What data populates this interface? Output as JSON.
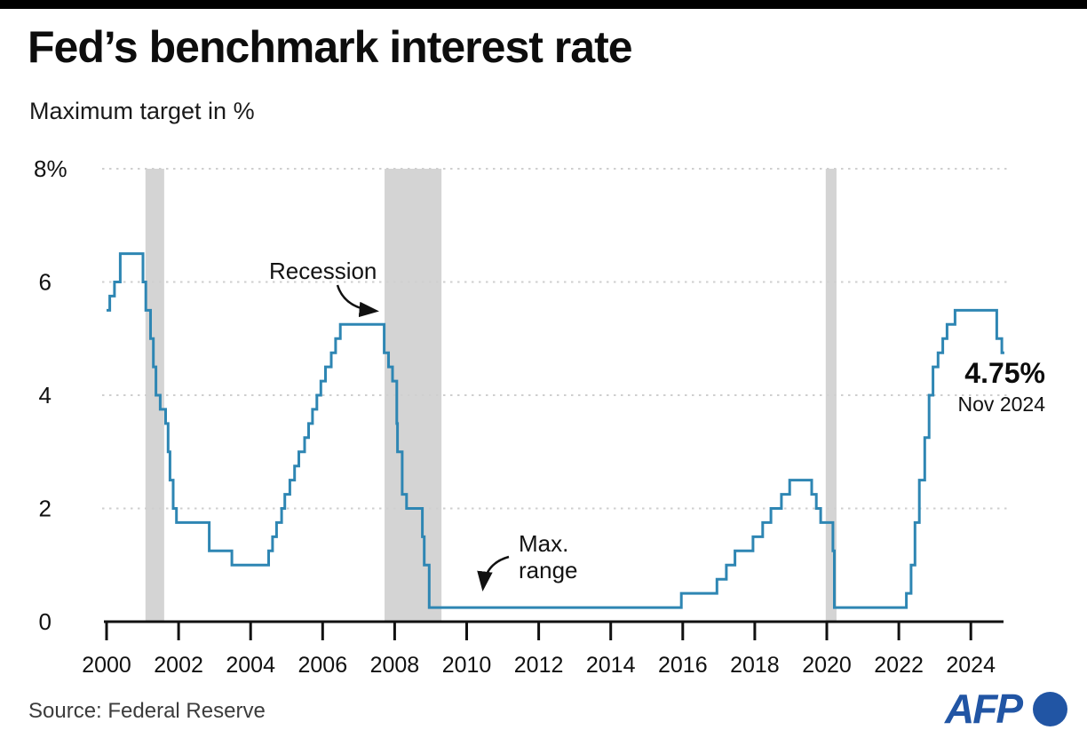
{
  "header": {
    "title": "Fed’s benchmark interest rate",
    "subtitle": "Maximum target in %"
  },
  "footer": {
    "source": "Source: Federal Reserve",
    "logo_text": "AFP"
  },
  "colors": {
    "line": "#2e86b3",
    "recession_band": "#d4d4d4",
    "gridline": "#cfcfcf",
    "axis": "#111111",
    "afp_blue": "#2155a4"
  },
  "chart_data": {
    "type": "line",
    "title": "Fed’s benchmark interest rate",
    "subtitle": "Maximum target in %",
    "ylabel": "Maximum target in %",
    "xlabel": "",
    "xlim": [
      1999.95,
      2024.95
    ],
    "ylim": [
      0,
      8
    ],
    "grid": "dotted horizontal",
    "legend": "none",
    "x_ticks": [
      2000,
      2002,
      2004,
      2006,
      2008,
      2010,
      2012,
      2014,
      2016,
      2018,
      2020,
      2022,
      2024
    ],
    "y_ticks": [
      {
        "label": "8%",
        "value": 8
      },
      {
        "label": "6",
        "value": 6
      },
      {
        "label": "4",
        "value": 4
      },
      {
        "label": "2",
        "value": 2
      },
      {
        "label": "0",
        "value": 0
      }
    ],
    "recessions": [
      [
        2001.08,
        2001.6
      ],
      [
        2007.72,
        2009.3
      ],
      [
        2019.97,
        2020.27
      ]
    ],
    "x_end": 2024.93,
    "step_points": [
      [
        2000.0,
        5.5
      ],
      [
        2000.09,
        5.75
      ],
      [
        2000.22,
        6.0
      ],
      [
        2000.38,
        6.5
      ],
      [
        2001.01,
        6.0
      ],
      [
        2001.09,
        5.5
      ],
      [
        2001.22,
        5.0
      ],
      [
        2001.3,
        4.5
      ],
      [
        2001.37,
        4.0
      ],
      [
        2001.49,
        3.75
      ],
      [
        2001.64,
        3.5
      ],
      [
        2001.71,
        3.0
      ],
      [
        2001.76,
        2.5
      ],
      [
        2001.85,
        2.0
      ],
      [
        2001.94,
        1.75
      ],
      [
        2002.85,
        1.25
      ],
      [
        2003.48,
        1.0
      ],
      [
        2004.5,
        1.25
      ],
      [
        2004.61,
        1.5
      ],
      [
        2004.72,
        1.75
      ],
      [
        2004.86,
        2.0
      ],
      [
        2004.95,
        2.25
      ],
      [
        2005.09,
        2.5
      ],
      [
        2005.22,
        2.75
      ],
      [
        2005.34,
        3.0
      ],
      [
        2005.5,
        3.25
      ],
      [
        2005.61,
        3.5
      ],
      [
        2005.72,
        3.75
      ],
      [
        2005.84,
        4.0
      ],
      [
        2005.95,
        4.25
      ],
      [
        2006.08,
        4.5
      ],
      [
        2006.24,
        4.75
      ],
      [
        2006.36,
        5.0
      ],
      [
        2006.49,
        5.25
      ],
      [
        2007.71,
        4.75
      ],
      [
        2007.83,
        4.5
      ],
      [
        2007.94,
        4.25
      ],
      [
        2008.06,
        3.5
      ],
      [
        2008.08,
        3.0
      ],
      [
        2008.21,
        2.25
      ],
      [
        2008.33,
        2.0
      ],
      [
        2008.77,
        1.5
      ],
      [
        2008.82,
        1.0
      ],
      [
        2008.96,
        0.25
      ],
      [
        2015.96,
        0.5
      ],
      [
        2016.95,
        0.75
      ],
      [
        2017.21,
        1.0
      ],
      [
        2017.45,
        1.25
      ],
      [
        2017.95,
        1.5
      ],
      [
        2018.22,
        1.75
      ],
      [
        2018.45,
        2.0
      ],
      [
        2018.74,
        2.25
      ],
      [
        2018.97,
        2.5
      ],
      [
        2019.58,
        2.25
      ],
      [
        2019.71,
        2.0
      ],
      [
        2019.83,
        1.75
      ],
      [
        2020.17,
        1.25
      ],
      [
        2020.21,
        0.25
      ],
      [
        2022.21,
        0.5
      ],
      [
        2022.34,
        1.0
      ],
      [
        2022.45,
        1.75
      ],
      [
        2022.57,
        2.5
      ],
      [
        2022.72,
        3.25
      ],
      [
        2022.84,
        4.0
      ],
      [
        2022.95,
        4.5
      ],
      [
        2023.09,
        4.75
      ],
      [
        2023.22,
        5.0
      ],
      [
        2023.34,
        5.25
      ],
      [
        2023.56,
        5.5
      ],
      [
        2024.72,
        5.0
      ],
      [
        2024.86,
        4.75
      ]
    ],
    "annotations": {
      "recession_label": "Recession",
      "max_range_line1": "Max.",
      "max_range_line2": "range",
      "latest_value": "4.75%",
      "latest_date": "Nov 2024"
    }
  }
}
